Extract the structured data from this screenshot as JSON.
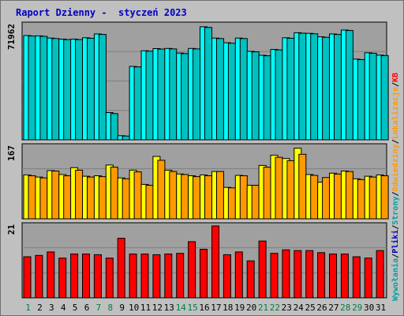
{
  "chart_data": {
    "title": "Raport Dzienny -  styczeń 2023",
    "days": [
      "1",
      "2",
      "3",
      "4",
      "5",
      "6",
      "7",
      "8",
      "9",
      "10",
      "11",
      "12",
      "13",
      "14",
      "15",
      "16",
      "17",
      "18",
      "19",
      "20",
      "21",
      "22",
      "23",
      "24",
      "25",
      "26",
      "27",
      "28",
      "29",
      "30",
      "31"
    ],
    "weekend_days": [
      "1",
      "7",
      "8",
      "14",
      "15",
      "21",
      "22",
      "28",
      "29"
    ],
    "panels": [
      {
        "type": "bar",
        "ymax_label": "71962",
        "ylim": [
          0,
          71962
        ],
        "series": [
          {
            "name": "Wywołania",
            "color": "#00ffff",
            "values": [
              65500,
              65300,
              63900,
              63300,
              63300,
              64100,
              66500,
              17100,
              2600,
              46100,
              56000,
              57300,
              57400,
              54500,
              57400,
              71000,
              63900,
              61000,
              63900,
              55600,
              53100,
              56800,
              64100,
              67300,
              66900,
              64700,
              66500,
              69000,
              50700,
              54700,
              53200
            ]
          },
          {
            "name": "Pliki",
            "color": "#00c0c0",
            "values": [
              65200,
              65000,
              63600,
              63000,
              63000,
              63800,
              66200,
              16500,
              2400,
              45800,
              55700,
              57000,
              57100,
              54200,
              57100,
              70600,
              63600,
              60700,
              63600,
              55300,
              52800,
              56500,
              63800,
              67000,
              66600,
              64400,
              66200,
              68700,
              50400,
              54400,
              52900
            ]
          }
        ]
      },
      {
        "type": "bar",
        "ymax_label": "167",
        "ylim": [
          0,
          167
        ],
        "series": [
          {
            "name": "Strony",
            "color": "#ffff00",
            "values": [
              102,
              97,
              112,
              103,
              119,
              99,
              100,
              125,
              95,
              113,
              80,
              145,
              113,
              104,
              100,
              102,
              110,
              73,
              101,
              78,
              124,
              148,
              140,
              164,
              103,
              85,
              106,
              111,
              93,
              99,
              102
            ]
          },
          {
            "name": "Odwiedziny",
            "color": "#ff9900",
            "values": [
              100,
              95,
              111,
              100,
              113,
              97,
              98,
              120,
              93,
              109,
              78,
              136,
              110,
              103,
              98,
              100,
              110,
              72,
              100,
              78,
              120,
              143,
              135,
              150,
              101,
              96,
              104,
              110,
              91,
              97,
              100
            ]
          }
        ]
      },
      {
        "type": "bar",
        "ymax_label": "21",
        "ylim": [
          0,
          21
        ],
        "series": [
          {
            "name": "KB",
            "color": "#ff0000",
            "values": [
              12,
              12.4,
              13.4,
              11.6,
              12.8,
              12.8,
              12.6,
              11.6,
              17.4,
              12.8,
              12.8,
              12.6,
              12.8,
              13,
              16.4,
              14.2,
              21,
              12.6,
              13.4,
              10.8,
              16.6,
              13,
              14,
              13.8,
              13.8,
              13.2,
              12.8,
              12.8,
              12,
              11.6,
              13.8
            ]
          }
        ]
      }
    ],
    "right_legend": [
      {
        "text": "Wywołania",
        "color": "#00a0a0"
      },
      {
        "text": "/",
        "color": "#000000"
      },
      {
        "text": "Pliki",
        "color": "#0000c0"
      },
      {
        "text": "/",
        "color": "#000000"
      },
      {
        "text": "Strony",
        "color": "#00a0a0"
      },
      {
        "text": "/",
        "color": "#000000"
      },
      {
        "text": "Odwiedziny",
        "color": "#ff9900"
      },
      {
        "text": "/",
        "color": "#000000"
      },
      {
        "text": "Lokalizacje",
        "color": "#ff9900"
      },
      {
        "text": "/",
        "color": "#000000"
      },
      {
        "text": "KB",
        "color": "#ff0000"
      }
    ],
    "colors": {
      "background": "#c0c0c0",
      "plot_bg": "#a0a0a0",
      "grid": "#7f7f7f",
      "title": "#0000c0",
      "weekend_day": "#008040",
      "weekday": "#000000"
    }
  }
}
